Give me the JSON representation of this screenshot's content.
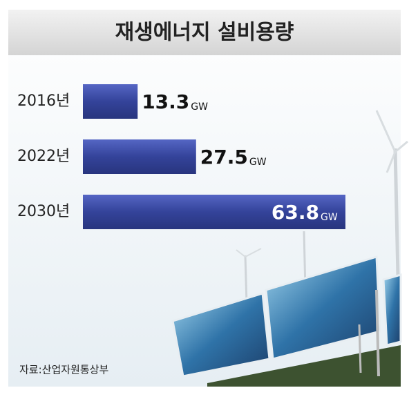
{
  "chart_data": {
    "type": "bar",
    "orientation": "horizontal",
    "title": "재생에너지 설비용량",
    "categories": [
      "2016년",
      "2022년",
      "2030년"
    ],
    "values": [
      13.3,
      27.5,
      63.8
    ],
    "unit": "GW",
    "source": "자료:산업자원통상부"
  }
}
